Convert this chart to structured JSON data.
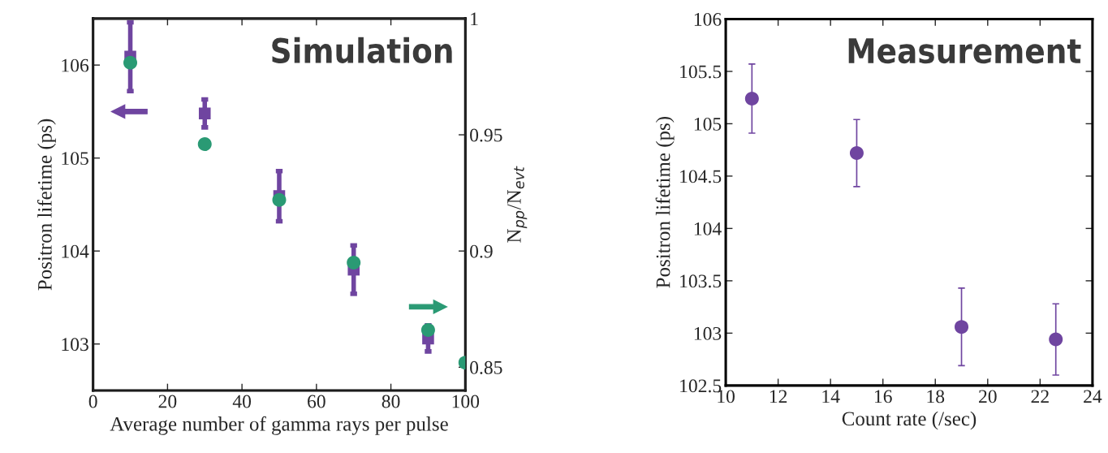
{
  "chart_data": [
    {
      "type": "scatter",
      "title": "Simulation",
      "xlabel": "Average number of gamma rays per pulse",
      "ylabel": "Positron lifetime (ps)",
      "y2label": "N$_{pp}$/N$_{evt}$",
      "xlim": [
        0,
        100
      ],
      "xticks": [
        0,
        20,
        40,
        60,
        80,
        100
      ],
      "ylim": [
        102.5,
        106.5
      ],
      "yticks": [
        103,
        104,
        105,
        106
      ],
      "y2lim": [
        0.84,
        1.0
      ],
      "y2ticks": [
        0.85,
        0.9,
        0.95,
        1
      ],
      "series": [
        {
          "color": "#6f45a0",
          "marker": "square",
          "x": [
            10,
            30,
            50,
            70,
            90
          ],
          "values": [
            106.09,
            105.48,
            104.59,
            103.8,
            103.06
          ],
          "errors": [
            0.37,
            0.15,
            0.27,
            0.26,
            0.14
          ]
        },
        {
          "color": "#2a9a74",
          "marker": "circle",
          "axis": "y2",
          "x": [
            10,
            30,
            50,
            70,
            90,
            100
          ],
          "values": [
            0.981,
            0.946,
            0.922,
            0.895,
            0.866,
            0.852
          ]
        }
      ]
    },
    {
      "type": "scatter",
      "title": "Measurement",
      "xlabel": "Count rate (/sec)",
      "ylabel": "Positron lifetime (ps)",
      "xlim": [
        10,
        24
      ],
      "xticks": [
        10,
        12,
        14,
        16,
        18,
        20,
        22,
        24
      ],
      "ylim": [
        102.5,
        106
      ],
      "yticks": [
        102.5,
        103,
        103.5,
        104,
        104.5,
        105,
        105.5,
        106
      ],
      "series": [
        {
          "color": "#6f45a0",
          "marker": "circle",
          "x": [
            11,
            15,
            19,
            22.6
          ],
          "values": [
            105.24,
            104.72,
            103.06,
            102.94
          ],
          "errors": [
            0.33,
            0.32,
            0.37,
            0.34
          ]
        }
      ]
    }
  ]
}
